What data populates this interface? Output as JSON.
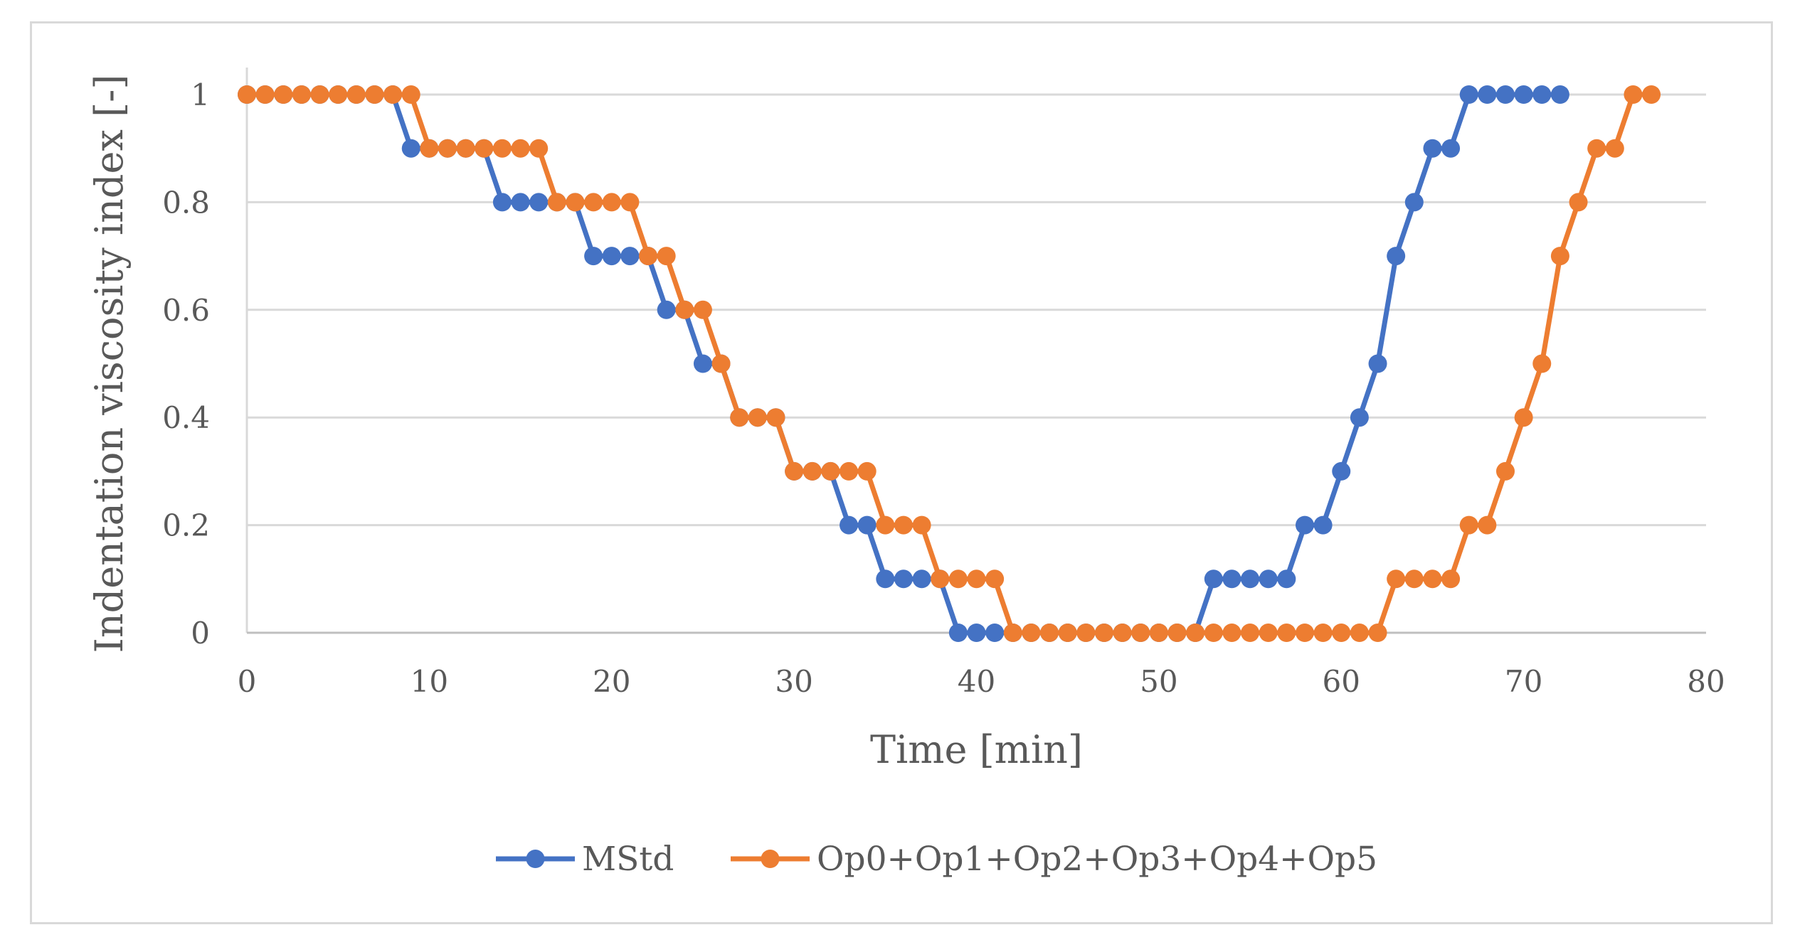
{
  "chart_data": {
    "type": "line",
    "title": "",
    "xlabel": "Time [min]",
    "ylabel": "Indentation viscosity index [-]",
    "xlim": [
      0,
      80
    ],
    "ylim": [
      0,
      1
    ],
    "xticks": [
      "0",
      "10",
      "20",
      "30",
      "40",
      "50",
      "60",
      "70",
      "80"
    ],
    "yticks": [
      "0",
      "0.2",
      "0.4",
      "0.6",
      "0.8",
      "1"
    ],
    "grid": "horizontal",
    "legend": "bottom-center",
    "series": [
      {
        "name": "MStd",
        "color": "#4472c4",
        "x": [
          0,
          1,
          2,
          3,
          4,
          5,
          6,
          7,
          8,
          9,
          10,
          11,
          12,
          13,
          14,
          15,
          16,
          17,
          18,
          19,
          20,
          21,
          22,
          23,
          24,
          25,
          26,
          27,
          28,
          29,
          30,
          31,
          32,
          33,
          34,
          35,
          36,
          37,
          38,
          39,
          40,
          41,
          42,
          43,
          44,
          45,
          46,
          47,
          48,
          49,
          50,
          51,
          52,
          53,
          54,
          55,
          56,
          57,
          58,
          59,
          60,
          61,
          62,
          63,
          64,
          65,
          66,
          67,
          68,
          69,
          70,
          71,
          72
        ],
        "y": [
          1,
          1,
          1,
          1,
          1,
          1,
          1,
          1,
          1,
          0.9,
          0.9,
          0.9,
          0.9,
          0.9,
          0.8,
          0.8,
          0.8,
          0.8,
          0.8,
          0.7,
          0.7,
          0.7,
          0.7,
          0.6,
          0.6,
          0.5,
          0.5,
          0.4,
          0.4,
          0.4,
          0.3,
          0.3,
          0.3,
          0.2,
          0.2,
          0.1,
          0.1,
          0.1,
          0.1,
          0,
          0,
          0,
          0,
          0,
          0,
          0,
          0,
          0,
          0,
          0,
          0,
          0,
          0,
          0.1,
          0.1,
          0.1,
          0.1,
          0.1,
          0.2,
          0.2,
          0.3,
          0.4,
          0.5,
          0.7,
          0.8,
          0.9,
          0.9,
          1,
          1,
          1,
          1,
          1,
          1
        ]
      },
      {
        "name": "Op0+Op1+Op2+Op3+Op4+Op5",
        "color": "#ed7d31",
        "x": [
          0,
          1,
          2,
          3,
          4,
          5,
          6,
          7,
          8,
          9,
          10,
          11,
          12,
          13,
          14,
          15,
          16,
          17,
          18,
          19,
          20,
          21,
          22,
          23,
          24,
          25,
          26,
          27,
          28,
          29,
          30,
          31,
          32,
          33,
          34,
          35,
          36,
          37,
          38,
          39,
          40,
          41,
          42,
          43,
          44,
          45,
          46,
          47,
          48,
          49,
          50,
          51,
          52,
          53,
          54,
          55,
          56,
          57,
          58,
          59,
          60,
          61,
          62,
          63,
          64,
          65,
          66,
          67,
          68,
          69,
          70,
          71,
          72,
          73,
          74,
          75,
          76,
          77
        ],
        "y": [
          1,
          1,
          1,
          1,
          1,
          1,
          1,
          1,
          1,
          1,
          0.9,
          0.9,
          0.9,
          0.9,
          0.9,
          0.9,
          0.9,
          0.8,
          0.8,
          0.8,
          0.8,
          0.8,
          0.7,
          0.7,
          0.6,
          0.6,
          0.5,
          0.4,
          0.4,
          0.4,
          0.3,
          0.3,
          0.3,
          0.3,
          0.3,
          0.2,
          0.2,
          0.2,
          0.1,
          0.1,
          0.1,
          0.1,
          0,
          0,
          0,
          0,
          0,
          0,
          0,
          0,
          0,
          0,
          0,
          0,
          0,
          0,
          0,
          0,
          0,
          0,
          0,
          0,
          0,
          0.1,
          0.1,
          0.1,
          0.1,
          0.2,
          0.2,
          0.3,
          0.4,
          0.5,
          0.7,
          0.8,
          0.9,
          0.9,
          1,
          1
        ]
      }
    ]
  }
}
